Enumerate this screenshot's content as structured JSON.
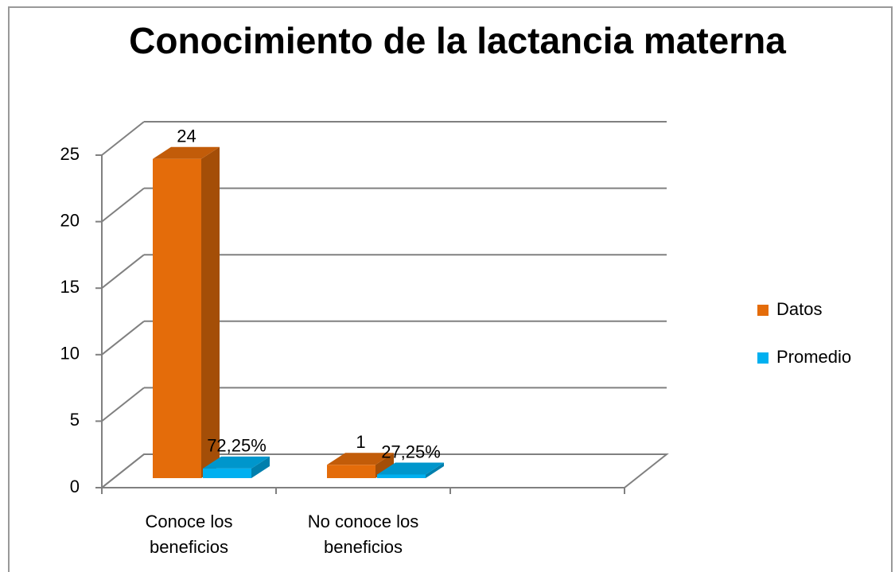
{
  "chart_data": {
    "type": "bar3d",
    "title": "Conocimiento de la lactancia materna",
    "categories": [
      "Conoce los beneficios",
      "No conoce los beneficios",
      null
    ],
    "series": [
      {
        "name": "Datos",
        "color": "#e46c0a",
        "values": [
          24,
          1,
          null
        ]
      },
      {
        "name": "Promedio",
        "color": "#00b0f0",
        "values": [
          0.7225,
          0.2725,
          null
        ],
        "value_labels": [
          "72,25%",
          "27,25%",
          null
        ]
      }
    ],
    "ylim": [
      0,
      25
    ],
    "yticks": [
      0,
      5,
      10,
      15,
      20,
      25
    ],
    "grid": true,
    "legend": "right"
  }
}
